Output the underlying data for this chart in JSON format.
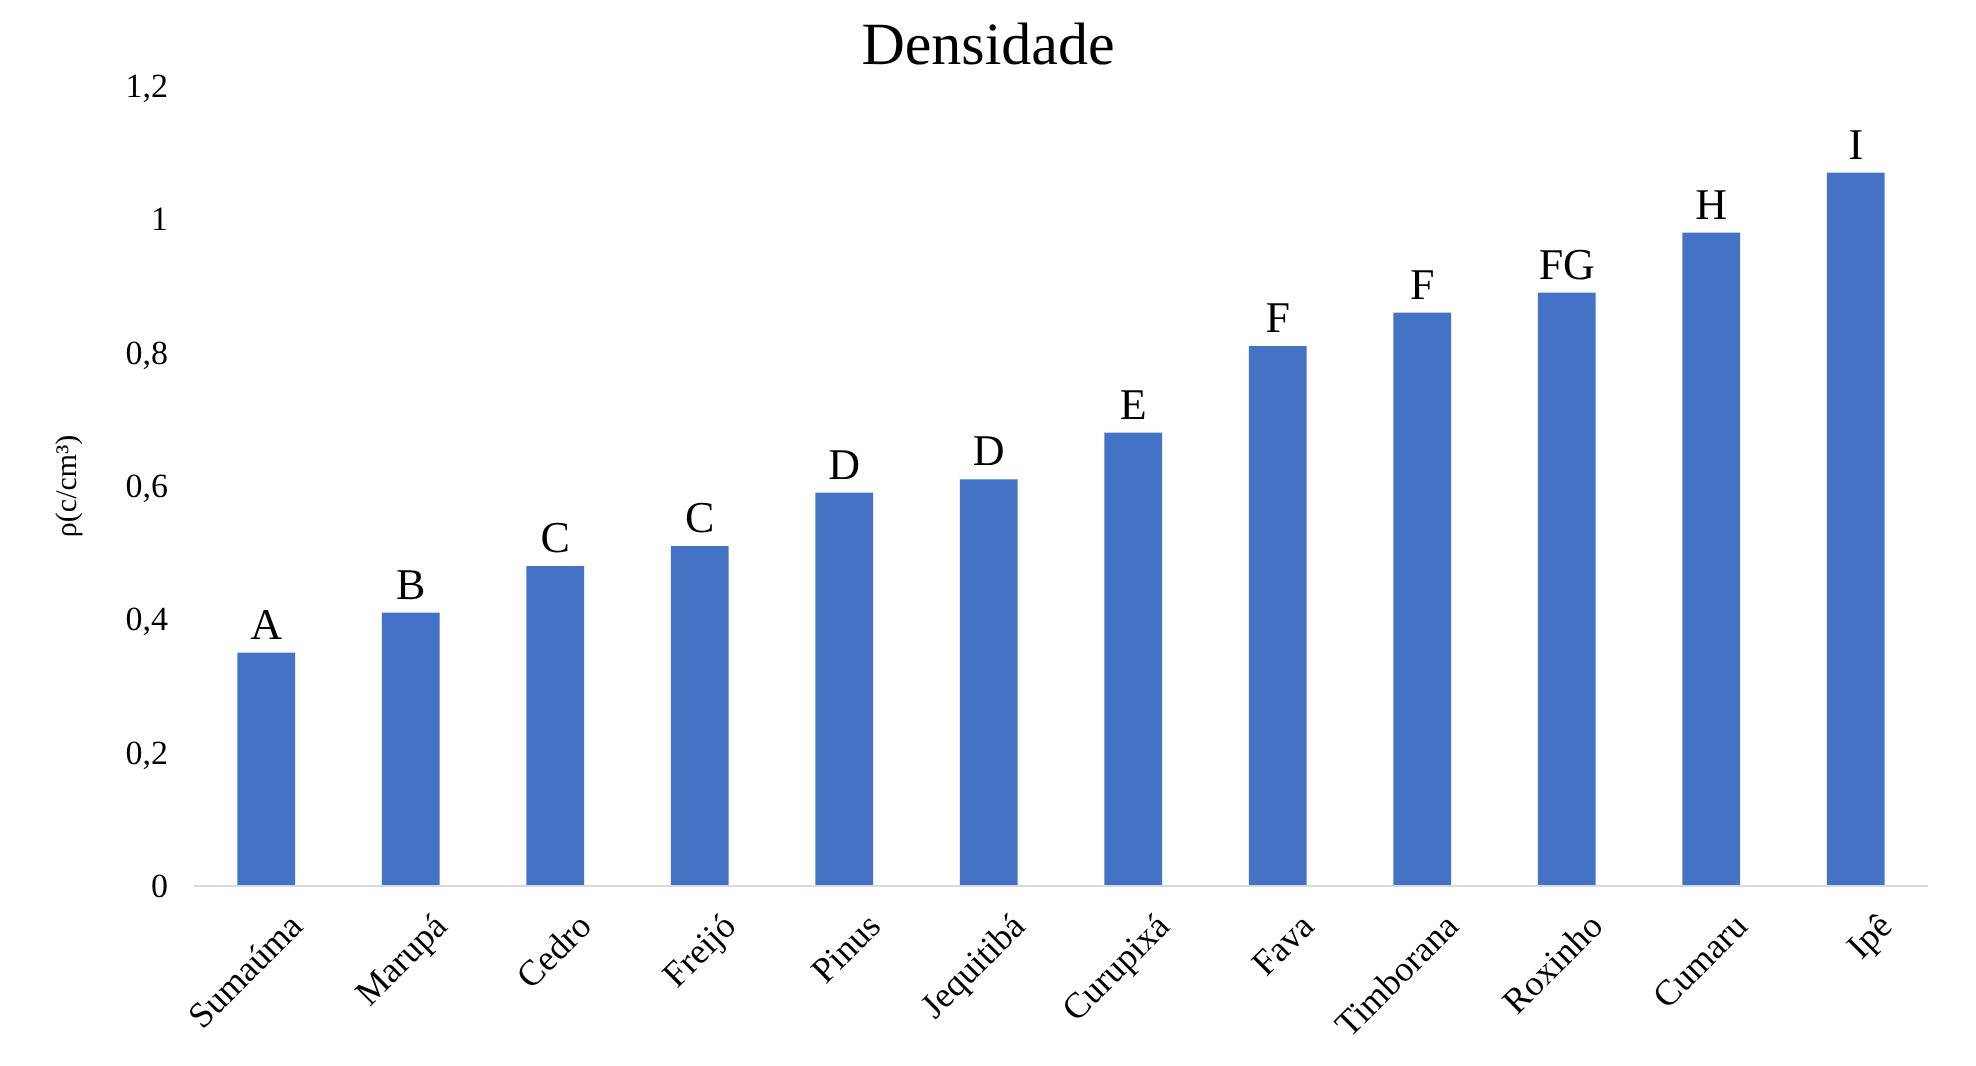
{
  "chart_data": {
    "type": "bar",
    "title": "Densidade",
    "ylabel": "ρ(c/cm³)",
    "categories": [
      "Sumaúma",
      "Marupá",
      "Cedro",
      "Freijó",
      "Pinus",
      "Jequitibá",
      "Curupixá",
      "Fava",
      "Timborana",
      "Roxinho",
      "Cumaru",
      "Ipê"
    ],
    "values": [
      0.35,
      0.41,
      0.48,
      0.51,
      0.59,
      0.61,
      0.68,
      0.81,
      0.86,
      0.89,
      0.98,
      1.07
    ],
    "color": "#4472c4",
    "ylim": [
      0,
      1.2
    ],
    "yticks": [
      {
        "value": 0,
        "label": "0"
      },
      {
        "value": 0.2,
        "label": "0,2"
      },
      {
        "value": 0.4,
        "label": "0,4"
      },
      {
        "value": 0.6,
        "label": "0,6"
      },
      {
        "value": 0.8,
        "label": "0,8"
      },
      {
        "value": 1,
        "label": "1"
      },
      {
        "value": 1.2,
        "label": "1,2"
      }
    ],
    "grid": false,
    "annotations": [
      {
        "text": "A",
        "x": "Sumaúma",
        "y": 0.35
      },
      {
        "text": "B",
        "x": "Marupá",
        "y": 0.41
      },
      {
        "text": "C",
        "x": "Cedro",
        "y": 0.48
      },
      {
        "text": "C",
        "x": "Freijó",
        "y": 0.51
      },
      {
        "text": "D",
        "x": "Pinus",
        "y": 0.59
      },
      {
        "text": "D",
        "x": "Jequitibá",
        "y": 0.61
      },
      {
        "text": "E",
        "x": "Curupixá",
        "y": 0.68
      },
      {
        "text": "F",
        "x": "Fava",
        "y": 0.81
      },
      {
        "text": "F",
        "x": "Timborana",
        "y": 0.86
      },
      {
        "text": "FG",
        "x": "Roxinho",
        "y": 0.89
      },
      {
        "text": "H",
        "x": "Cumaru",
        "y": 0.98
      },
      {
        "text": "I",
        "x": "Ipê",
        "y": 1.07
      }
    ]
  }
}
